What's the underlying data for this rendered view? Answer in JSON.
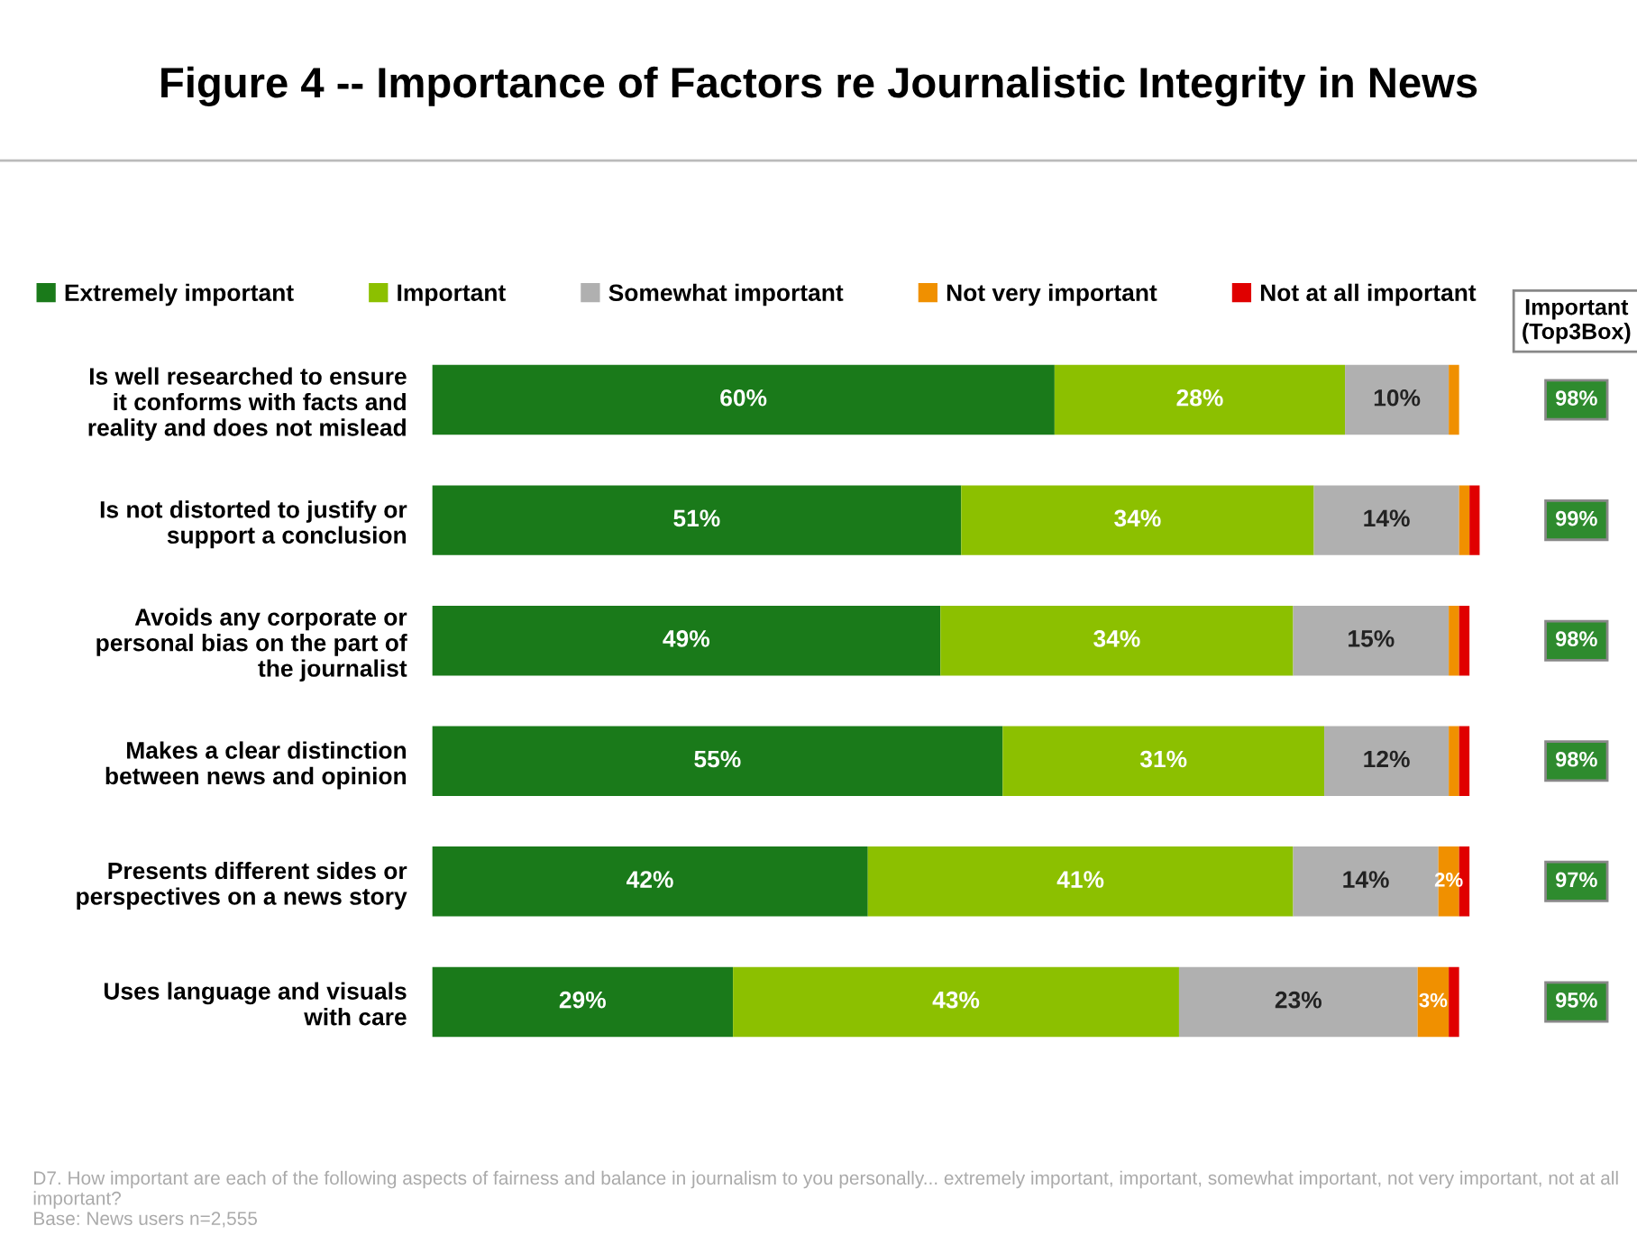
{
  "chart_data": {
    "type": "bar",
    "orientation": "horizontal",
    "stacked": true,
    "title": "Figure 4 -- Importance of Factors re Journalistic Integrity in News",
    "categories": [
      "Is well researched to ensure\nit conforms with facts and\nreality and does not mislead",
      "Is not distorted to justify or\nsupport a conclusion",
      "Avoids any corporate or\npersonal bias on the part of\nthe journalist",
      "Makes a clear distinction\nbetween news and opinion",
      "Presents different sides or\nperspectives on a news story",
      "Uses language and visuals\nwith care"
    ],
    "series": [
      {
        "name": "Extremely important",
        "color": "#1a7a1a",
        "values": [
          60,
          51,
          49,
          55,
          42,
          29
        ],
        "value_labels": [
          "60%",
          "51%",
          "49%",
          "55%",
          "42%",
          "29%"
        ]
      },
      {
        "name": "Important",
        "color": "#8cc000",
        "values": [
          28,
          34,
          34,
          31,
          41,
          43
        ],
        "value_labels": [
          "28%",
          "34%",
          "34%",
          "31%",
          "41%",
          "43%"
        ]
      },
      {
        "name": "Somewhat important",
        "color": "#b0b0b0",
        "values": [
          10,
          14,
          15,
          12,
          14,
          23
        ],
        "value_labels": [
          "10%",
          "14%",
          "15%",
          "12%",
          "14%",
          "23%"
        ]
      },
      {
        "name": "Not very important",
        "color": "#f09000",
        "values": [
          1,
          1,
          1,
          1,
          2,
          3
        ],
        "value_labels": [
          null,
          null,
          null,
          null,
          "2%",
          "3%"
        ]
      },
      {
        "name": "Not at all important",
        "color": "#e00000",
        "values": [
          0,
          1,
          1,
          1,
          1,
          1
        ],
        "value_labels": [
          null,
          null,
          null,
          null,
          null,
          null
        ]
      }
    ],
    "legend": "top",
    "annotations": [
      "Important\n(Top3Box)",
      "98%",
      "99%",
      "98%",
      "98%",
      "97%",
      "95%",
      "D7. How important are each of the following aspects of fairness and balance in journalism to you personally... extremely important, important, somewhat important, not very important, not at all important?\nBase: News users n=2,555"
    ]
  }
}
